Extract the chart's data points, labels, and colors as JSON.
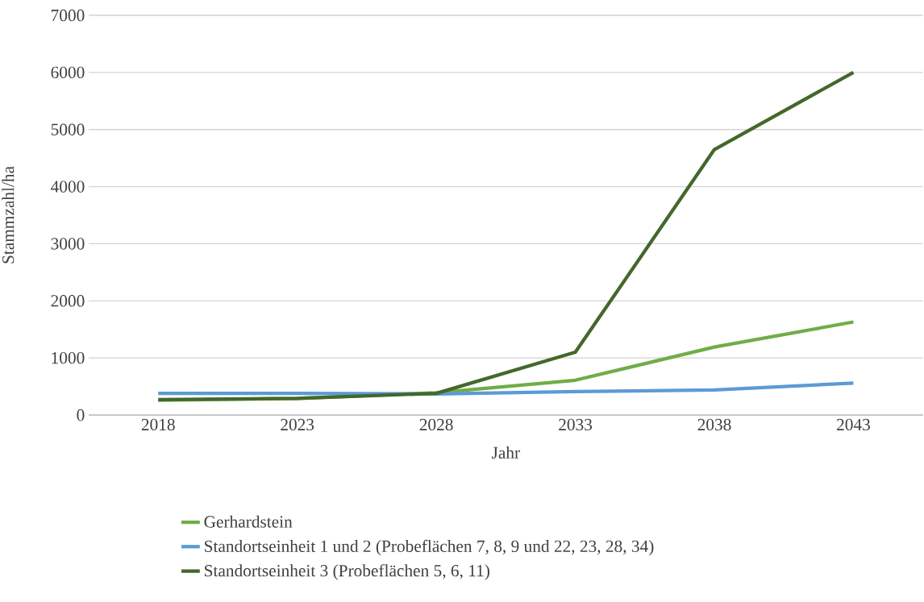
{
  "chart_data": {
    "type": "line",
    "xlabel": "Jahr",
    "ylabel": "Stammzahl/ha",
    "categories": [
      "2018",
      "2023",
      "2028",
      "2033",
      "2038",
      "2043"
    ],
    "series": [
      {
        "name": "Gerhardstein",
        "color": "#70ad47",
        "values": [
          260,
          290,
          390,
          610,
          1190,
          1630
        ]
      },
      {
        "name": "Standortseinheit 1 und 2 (Probeflächen 7, 8, 9 und 22, 23, 28, 34)",
        "color": "#5b9bd5",
        "values": [
          380,
          380,
          370,
          410,
          440,
          560
        ]
      },
      {
        "name": "Standortseinheit 3 (Probeflächen 5, 6, 11)",
        "color": "#43682b",
        "values": [
          270,
          290,
          380,
          1100,
          4650,
          6000
        ]
      }
    ],
    "ylim": [
      0,
      7000
    ],
    "yticks": [
      0,
      1000,
      2000,
      3000,
      4000,
      5000,
      6000,
      7000
    ],
    "grid": "y",
    "legend": "bottom",
    "marker": "none",
    "line_style": "solid"
  }
}
